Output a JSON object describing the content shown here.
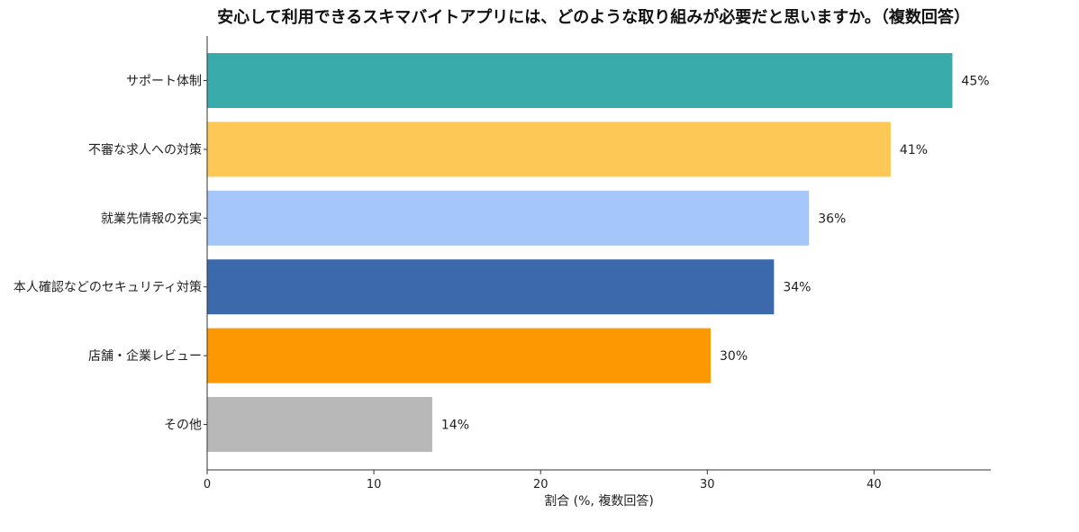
{
  "chart_data": {
    "type": "bar",
    "orientation": "horizontal",
    "title": "安心して利用できるスキマバイトアプリには、どのような取り組みが必要だと思いますか。（複数回答）",
    "xlabel": "割合 (%, 複数回答)",
    "ylabel": "",
    "xlim": [
      0,
      47
    ],
    "xticks": [
      0,
      10,
      20,
      30,
      40
    ],
    "grid": false,
    "categories": [
      "サポート体制",
      "不審な求人への対策",
      "就業先情報の充実",
      "本人確認などのセキュリティ対策",
      "店舗・企業レビュー",
      "その他"
    ],
    "values": [
      44.7,
      41.0,
      36.1,
      34.0,
      30.2,
      13.5
    ],
    "value_labels": [
      "45%",
      "41%",
      "36%",
      "34%",
      "30%",
      "14%"
    ],
    "colors": [
      "#3aabab",
      "#fec857",
      "#a4c6f8",
      "#3c69ab",
      "#fd9702",
      "#b8b8b8"
    ]
  }
}
